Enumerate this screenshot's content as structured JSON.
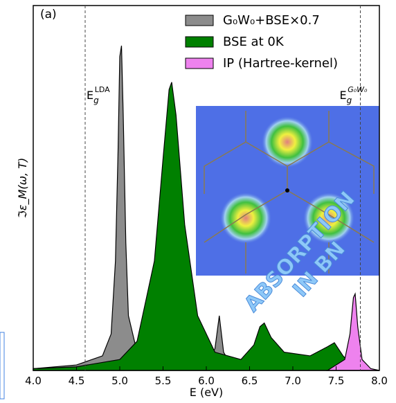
{
  "chart_data": {
    "type": "area",
    "panel_label": "(a)",
    "x_label": "E (eV)",
    "y_label": "ℑε_M(ω, T)",
    "xlim": [
      4.0,
      8.0
    ],
    "ylim": [
      0,
      1
    ],
    "xticks": [
      {
        "value": 4,
        "label": "4.0"
      },
      4.5,
      {
        "value": 5,
        "label": "5.0"
      },
      5.5,
      {
        "value": 6,
        "label": "6.0"
      },
      6.5,
      {
        "value": 7,
        "label": "7.0"
      },
      7.5,
      {
        "value": 8,
        "label": "8.0"
      }
    ],
    "legend": "upper right",
    "series": [
      {
        "name": "G₀W₀+BSE×0.7",
        "color": "#8c8c8c",
        "x": [
          4.0,
          4.5,
          4.8,
          4.9,
          4.95,
          4.98,
          5.0,
          5.02,
          5.04,
          5.07,
          5.1,
          5.2,
          5.5,
          6.0,
          6.1,
          6.15,
          6.2,
          6.3,
          7.0,
          8.0
        ],
        "values": [
          0.005,
          0.015,
          0.04,
          0.1,
          0.3,
          0.6,
          0.86,
          0.89,
          0.7,
          0.35,
          0.15,
          0.05,
          0.015,
          0.02,
          0.06,
          0.15,
          0.05,
          0.01,
          0.005,
          0.0
        ]
      },
      {
        "name": "BSE at 0K",
        "color": "#008000",
        "x": [
          4.0,
          4.5,
          5.0,
          5.2,
          5.4,
          5.5,
          5.57,
          5.6,
          5.65,
          5.75,
          5.9,
          6.1,
          6.4,
          6.55,
          6.62,
          6.67,
          6.75,
          6.9,
          7.2,
          7.4,
          7.48,
          7.58,
          7.7,
          8.0
        ],
        "values": [
          0.005,
          0.01,
          0.03,
          0.08,
          0.3,
          0.58,
          0.77,
          0.79,
          0.7,
          0.4,
          0.15,
          0.05,
          0.03,
          0.07,
          0.12,
          0.13,
          0.09,
          0.05,
          0.04,
          0.065,
          0.076,
          0.04,
          0.01,
          0.0
        ]
      },
      {
        "name": "IP (Hartree-kernel)",
        "color": "#ee82ee",
        "x": [
          7.4,
          7.6,
          7.66,
          7.7,
          7.72,
          7.75,
          7.8,
          7.9,
          8.0
        ],
        "values": [
          0.0,
          0.03,
          0.1,
          0.2,
          0.21,
          0.12,
          0.03,
          0.005,
          0.0
        ]
      }
    ],
    "vlines": [
      {
        "x": 4.6,
        "label": {
          "base": "E",
          "sub": "g",
          "sup": "LDA"
        }
      },
      {
        "x": 7.78,
        "label": {
          "base": "E",
          "sub": "g",
          "sup": "G₀W₀"
        }
      }
    ],
    "inset_text": [
      "ABSORPTION",
      "IN BN"
    ]
  }
}
